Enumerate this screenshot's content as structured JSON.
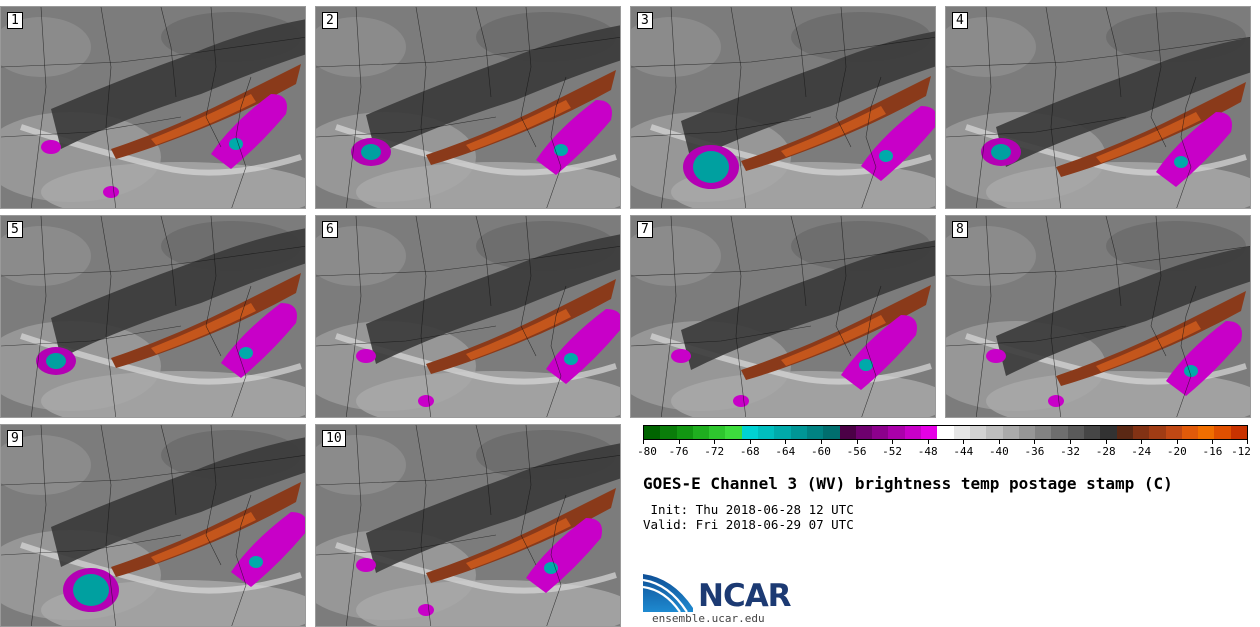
{
  "panels": [
    {
      "label": "1",
      "variant": 0
    },
    {
      "label": "2",
      "variant": 1
    },
    {
      "label": "3",
      "variant": 2
    },
    {
      "label": "4",
      "variant": 3
    },
    {
      "label": "5",
      "variant": 4
    },
    {
      "label": "6",
      "variant": 5
    },
    {
      "label": "7",
      "variant": 6
    },
    {
      "label": "8",
      "variant": 7
    },
    {
      "label": "9",
      "variant": 8
    },
    {
      "label": "10",
      "variant": 9
    }
  ],
  "colorbar": {
    "colors": [
      "#006400",
      "#0a7d0a",
      "#129612",
      "#1fae1f",
      "#2ec62e",
      "#3ddc3d",
      "#00d2d2",
      "#00bebe",
      "#00aaaa",
      "#009696",
      "#008282",
      "#006e6e",
      "#4b0046",
      "#6e006e",
      "#8c008c",
      "#aa00aa",
      "#c800c8",
      "#e600e6",
      "#ffffff",
      "#e6e6e6",
      "#d2d2d2",
      "#bebebe",
      "#aaaaaa",
      "#969696",
      "#828282",
      "#6e6e6e",
      "#5a5a5a",
      "#464646",
      "#323232",
      "#5a2814",
      "#823214",
      "#a03c14",
      "#c04814",
      "#e05a0a",
      "#f06e00",
      "#e05000",
      "#c83200"
    ],
    "tick_labels": [
      "-80",
      "-76",
      "-72",
      "-68",
      "-64",
      "-60",
      "-56",
      "-52",
      "-48",
      "-44",
      "-40",
      "-36",
      "-32",
      "-28",
      "-24",
      "-20",
      "-16",
      "-12"
    ]
  },
  "title": "GOES-E Channel 3 (WV) brightness temp postage stamp (C)",
  "init_line": " Init: Thu 2018-06-28 12 UTC",
  "valid_line": "Valid: Fri 2018-06-29 07 UTC",
  "logo": {
    "text": "NCAR",
    "url": "ensemble.ucar.edu"
  }
}
